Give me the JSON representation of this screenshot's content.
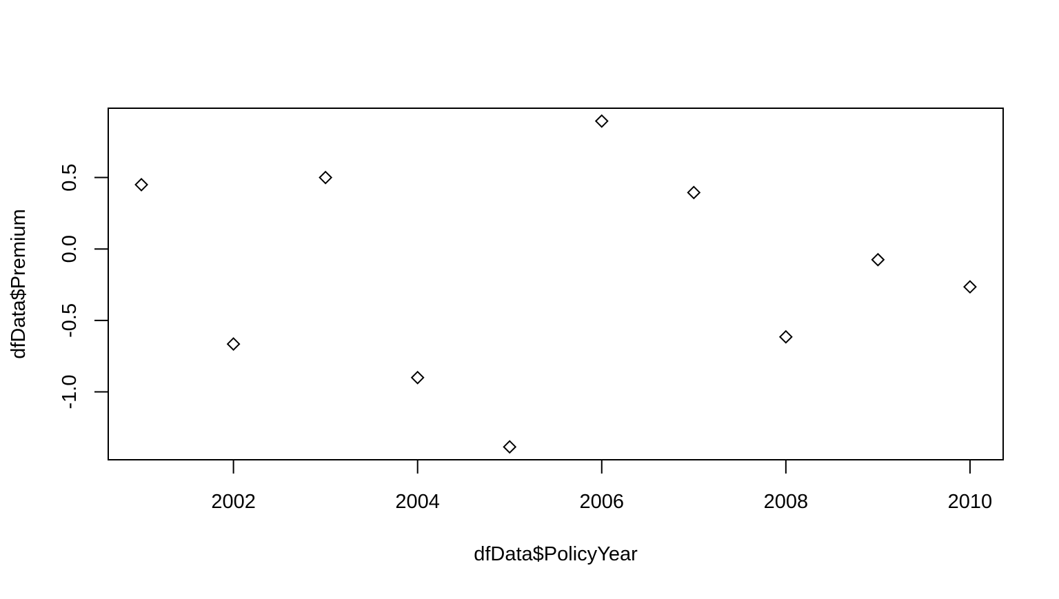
{
  "chart_data": {
    "type": "scatter",
    "title": "",
    "xlabel": "dfData$PolicyYear",
    "ylabel": "dfData$Premium",
    "x": [
      2001,
      2002,
      2003,
      2004,
      2005,
      2006,
      2007,
      2008,
      2009,
      2010
    ],
    "y": [
      0.45,
      -0.665,
      0.5,
      -0.9,
      -1.385,
      0.895,
      0.395,
      -0.615,
      -0.075,
      -0.265
    ],
    "xlim": [
      2000.64,
      2010.36
    ],
    "ylim": [
      -1.475,
      0.985
    ],
    "x_ticks": [
      2002,
      2004,
      2006,
      2008,
      2010
    ],
    "x_tick_labels": [
      "2002",
      "2004",
      "2006",
      "2008",
      "2010"
    ],
    "y_ticks": [
      -1.0,
      -0.5,
      0.0,
      0.5
    ],
    "y_tick_labels": [
      "-1.0",
      "-0.5",
      "0.0",
      "0.5"
    ],
    "marker": "diamond",
    "marker_color": "#000000",
    "marker_fill": "none",
    "grid": false,
    "legend": "none"
  }
}
